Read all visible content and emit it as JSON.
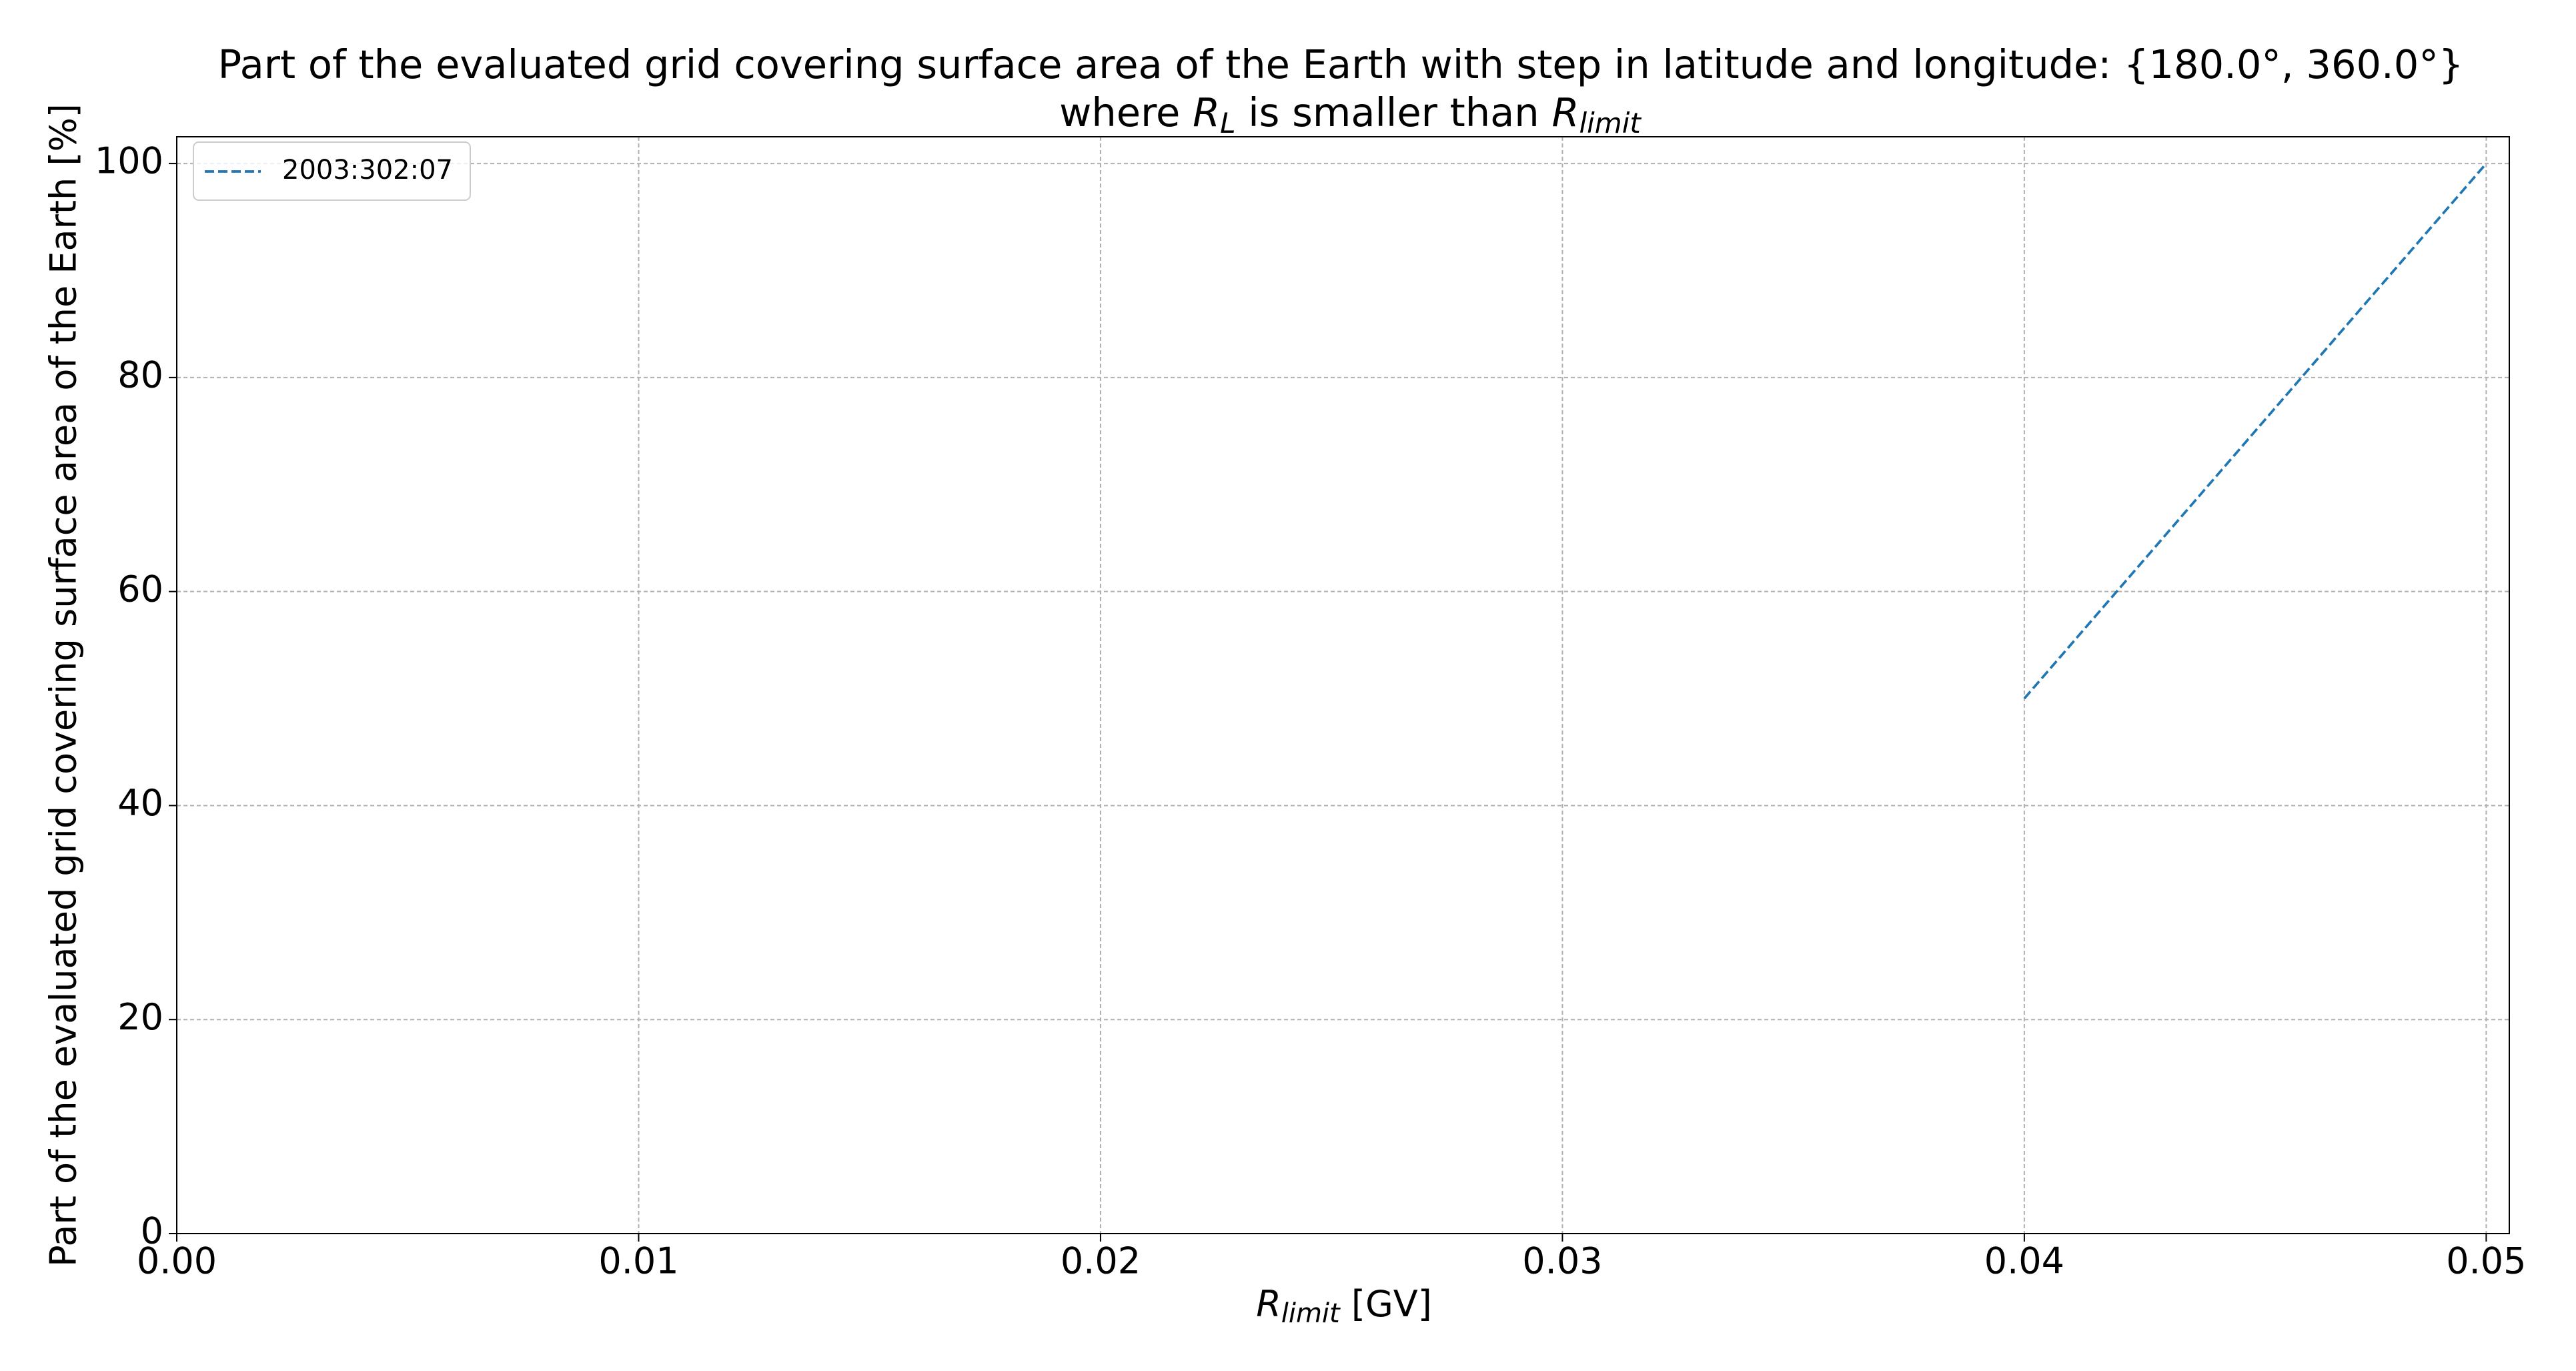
{
  "chart_data": {
    "type": "line",
    "title": "Part of the evaluated grid covering surface area of the Earth with step in latitude and longitude: {180.0°, 360.0°}",
    "subtitle_parts": [
      "where",
      "R",
      "L",
      "is smaller than",
      "R",
      "limit"
    ],
    "xlabel_parts": [
      "R",
      "limit",
      "[GV]"
    ],
    "ylabel": "Part of the evaluated grid covering surface area of the Earth  [%]",
    "x": [
      0.04,
      0.05
    ],
    "series": [
      {
        "name": "2003:302:07",
        "color": "#1f77b4",
        "values": [
          50,
          100
        ],
        "dashed": true
      }
    ],
    "xlim": [
      0,
      0.0505
    ],
    "ylim": [
      0,
      102.5
    ],
    "xticks": [
      {
        "value": 0,
        "label": "0.00"
      },
      0.01,
      0.02,
      0.03,
      0.04,
      0.05
    ],
    "yticks": [
      0,
      20,
      40,
      60,
      80,
      100
    ],
    "grid": true,
    "legend": "upper left"
  }
}
